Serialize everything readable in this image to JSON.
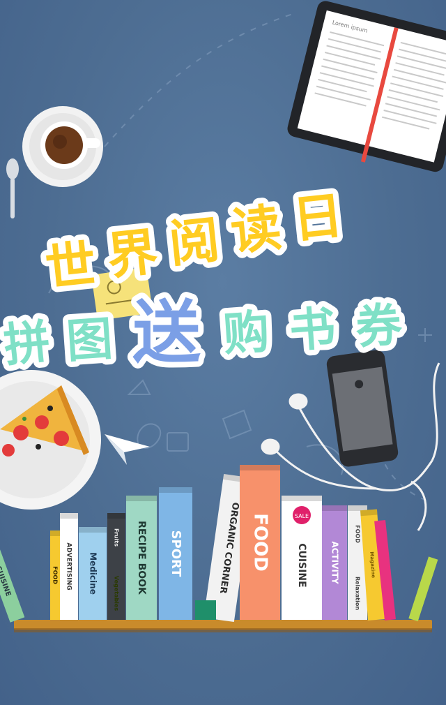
{
  "headline": {
    "line1": [
      "世",
      "界",
      "阅",
      "读",
      "日"
    ],
    "line2": [
      "拼",
      "图",
      "送",
      "购",
      "书",
      "券"
    ]
  },
  "tablet": {
    "heading": "Lorem ipsum"
  },
  "books": [
    {
      "label": "CUISINE"
    },
    {
      "label": "FOOD"
    },
    {
      "label": "ADVERTISING"
    },
    {
      "label": "Medicine"
    },
    {
      "label": "Fruits"
    },
    {
      "label": "Vegetables"
    },
    {
      "label": "RECIPE BOOK"
    },
    {
      "label": "SPORT"
    },
    {
      "label": "ORGANIC CORNER"
    },
    {
      "label": "FOOD"
    },
    {
      "label": "SALE"
    },
    {
      "label": "CUISINE"
    },
    {
      "label": "ACTIVITY"
    },
    {
      "label": "FOOD"
    },
    {
      "label": "Relaxation"
    },
    {
      "label": "Magazine"
    }
  ],
  "colors": {
    "background": "#4f6f93",
    "title_yellow": "#ffcc22",
    "title_teal": "#7fe0c6",
    "title_blue": "#7b9fe6",
    "shelf": "#c98b2b"
  }
}
